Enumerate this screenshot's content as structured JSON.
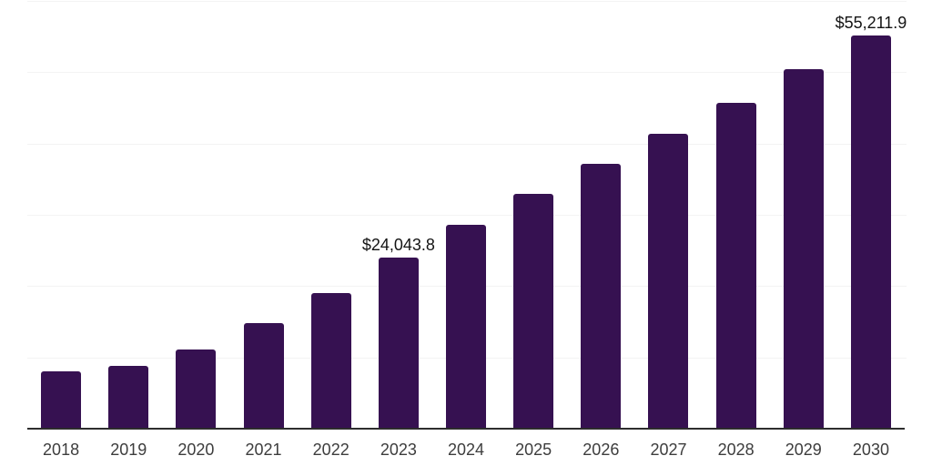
{
  "chart_data": {
    "type": "bar",
    "title": "",
    "xlabel": "",
    "ylabel": "",
    "categories": [
      "2018",
      "2019",
      "2020",
      "2021",
      "2022",
      "2023",
      "2024",
      "2025",
      "2026",
      "2027",
      "2028",
      "2029",
      "2030"
    ],
    "values": [
      8100,
      8800,
      11150,
      14800,
      19050,
      24043.8,
      28600,
      32950,
      37200,
      41400,
      45750,
      50450,
      55211.9
    ],
    "data_labels": {
      "2023": "$24,043.8",
      "2030": "$55,211.9"
    },
    "ylim": [
      0,
      60000
    ],
    "grid_step": 10000,
    "grid": "horizontal",
    "y_axis_tick_labels": "none",
    "legend": "none",
    "colors": {
      "bar": "#361151",
      "axis": "#2d2d2d",
      "gridline": "#f3f3f3",
      "tick_label": "#3d3d3d",
      "value_label": "#141414",
      "background": "#ffffff"
    }
  }
}
